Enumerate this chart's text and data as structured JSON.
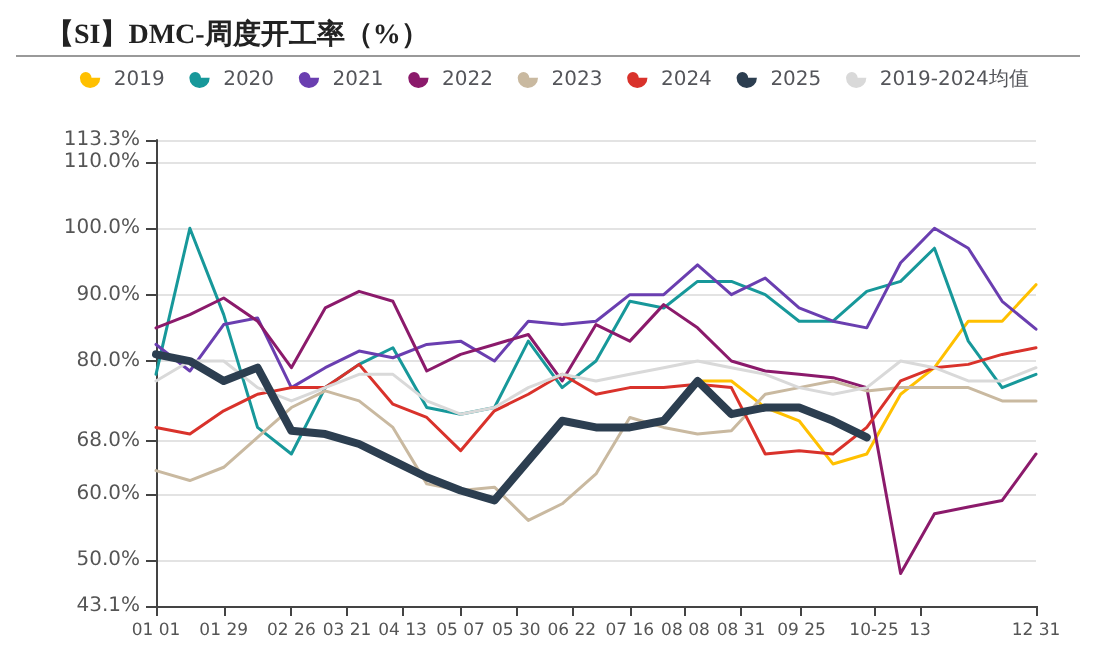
{
  "chart_data": {
    "type": "line",
    "title": "【SI】DMC-周度开工率（%）",
    "x": [
      "--01-01",
      "--01-15",
      "--01-29",
      "--02-12",
      "--02-26",
      "--03-12",
      "--03-26",
      "--04-09",
      "--04-23",
      "--05-07",
      "--05-21",
      "--06-04",
      "--06-18",
      "--07-02",
      "--07-16",
      "--07-30",
      "--08-13",
      "--08-27",
      "--09-10",
      "--09-24",
      "--10-08",
      "--10-22",
      "--11-05",
      "--11-19",
      "--12-03",
      "--12-17",
      "--12-31"
    ],
    "series": [
      {
        "name": "2019",
        "color": "#ffc000",
        "values": [
          null,
          null,
          null,
          null,
          null,
          null,
          null,
          null,
          null,
          null,
          null,
          null,
          null,
          null,
          null,
          null,
          77,
          77,
          73,
          71,
          64.5,
          66,
          75,
          79,
          86,
          86,
          91.5
        ]
      },
      {
        "name": "2020",
        "color": "#17989a",
        "values": [
          78,
          100,
          87,
          70,
          66,
          76,
          79.5,
          82,
          73,
          72,
          73,
          83,
          76,
          80,
          89,
          88,
          92,
          92,
          90,
          86,
          86,
          90.5,
          92,
          97,
          83,
          76,
          78
        ]
      },
      {
        "name": "2021",
        "color": "#6a3eb0",
        "values": [
          82.5,
          78.5,
          85.5,
          86.5,
          76,
          79,
          81.5,
          80.5,
          82.5,
          83,
          80,
          86,
          85.5,
          86,
          90,
          90,
          94.5,
          90,
          92.5,
          88,
          86,
          85,
          94.8,
          100,
          97,
          89,
          84.8
        ]
      },
      {
        "name": "2022",
        "color": "#8b1a6b",
        "values": [
          85,
          87,
          89.5,
          86,
          79,
          88,
          90.5,
          89,
          78.5,
          81,
          82.5,
          84,
          77,
          85.5,
          83,
          88.5,
          85,
          80,
          78.5,
          78,
          77.5,
          76,
          48,
          57,
          58,
          59,
          66
        ]
      },
      {
        "name": "2023",
        "color": "#c9b9a0",
        "values": [
          63.5,
          62,
          64,
          68.5,
          73,
          75.5,
          74,
          70,
          61.5,
          60.5,
          61,
          56,
          58.5,
          63,
          71.5,
          70,
          69,
          69.5,
          75,
          76,
          77,
          75.5,
          76,
          76,
          76,
          74,
          74
        ]
      },
      {
        "name": "2024",
        "color": "#d9322b",
        "values": [
          70,
          69,
          72.5,
          75,
          76,
          76,
          79.5,
          73.5,
          71.5,
          66.5,
          72.5,
          75,
          78,
          75,
          76,
          76,
          76.5,
          76,
          66,
          66.5,
          66,
          70,
          77,
          79,
          79.5,
          81,
          82
        ]
      },
      {
        "name": "2025",
        "color": "#2c3e50",
        "values": [
          81,
          80,
          77,
          79,
          69.5,
          69,
          67.5,
          65,
          62.5,
          60.5,
          59,
          65,
          71,
          70,
          70,
          71,
          77,
          72,
          73,
          73,
          71,
          68.5,
          null,
          null,
          null,
          null,
          null
        ]
      },
      {
        "name": "2019-2024均值",
        "color": "#d9d9d9",
        "values": [
          77,
          80,
          80,
          76,
          74,
          76,
          78,
          78,
          74,
          72,
          73,
          76,
          78,
          77,
          78,
          79,
          80,
          79,
          78,
          76,
          75,
          76,
          80,
          79,
          77,
          77,
          79
        ]
      }
    ],
    "xlim": [
      "--01-01",
      "--12-31"
    ],
    "xticks": [
      {
        "value": "--01-01",
        "label": "01 01"
      },
      {
        "value": "--01-29",
        "label": "01 29"
      },
      {
        "value": "--02-26",
        "label": "02 26"
      },
      {
        "value": "--03-21",
        "label": "03 21"
      },
      {
        "value": "--04-13",
        "label": "04 13"
      },
      {
        "value": "--05-07",
        "label": "05 07"
      },
      {
        "value": "--05-30",
        "label": "05 30"
      },
      {
        "value": "--06-22",
        "label": "06 22"
      },
      {
        "value": "--07-16",
        "label": "07 16"
      },
      {
        "value": "--08-08",
        "label": "08 08"
      },
      {
        "value": "--08-31",
        "label": "08 31"
      },
      {
        "value": "--09-25",
        "label": "09 25"
      },
      {
        "value": "--10-25",
        "label": "10-25"
      },
      {
        "value": "--11-13",
        "label": "13"
      },
      {
        "value": "--12-31",
        "label": "12 31"
      }
    ],
    "ylim": [
      43.1,
      113.3
    ],
    "yticks": [
      {
        "value": 43.1,
        "label": "43.1%"
      },
      {
        "value": 50,
        "label": "50.0%"
      },
      {
        "value": 60,
        "label": "60.0%"
      },
      {
        "value": 68,
        "label": "68.0%"
      },
      {
        "value": 80,
        "label": "80.0%"
      },
      {
        "value": 90,
        "label": "90.0%"
      },
      {
        "value": 100,
        "label": "100.0%"
      },
      {
        "value": 110,
        "label": "110.0%"
      },
      {
        "value": 113.3,
        "label": "113.3%"
      }
    ],
    "grid": "y",
    "legend": "top",
    "marker": "none",
    "line_style": "solid"
  }
}
